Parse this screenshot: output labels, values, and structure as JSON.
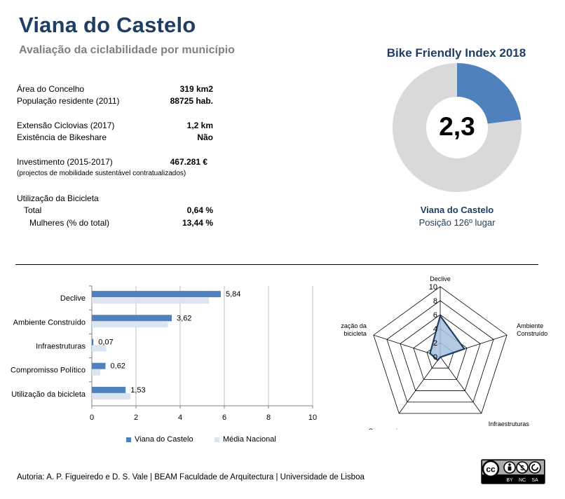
{
  "header": {
    "title": "Viana do Castelo",
    "subtitle": "Avaliação da ciclabilidade por município"
  },
  "facts": [
    {
      "label": "Área do Concelho",
      "value": "319 km2"
    },
    {
      "label": "População residente (2011)",
      "value": "88725 hab."
    },
    {
      "label": "Extensão Ciclovias (2017)",
      "value": "1,2 km"
    },
    {
      "label": "Existência de Bikeshare",
      "value": "Não"
    },
    {
      "label": "Investimento (2015-2017)",
      "value": "467.281 €"
    },
    {
      "label": "(projectos de mobilidade sustentável contratualizados)",
      "value": ""
    },
    {
      "label": "Utilização da Bicicleta",
      "value": ""
    },
    {
      "label": "Total",
      "value": "0,64 %"
    },
    {
      "label": "Mulheres (% do total)",
      "value": "13,44 %"
    }
  ],
  "bike_friendly": {
    "title": "Bike Friendly Index 2018",
    "score": "2,3",
    "municipality": "Viana do Castelo",
    "position": "Posição 126º lugar",
    "fill_fraction": 0.23,
    "colors": {
      "fill": "#4f81bd",
      "track": "#d9d9d9"
    }
  },
  "chart_data": [
    {
      "type": "bar",
      "orientation": "horizontal",
      "categories": [
        "Declive",
        "Ambiente Construído",
        "Infraestruturas",
        "Compromisso Político",
        "Utilização da bicicleta"
      ],
      "series": [
        {
          "name": "Viana do Castelo",
          "values": [
            5.84,
            3.62,
            0.07,
            0.62,
            1.53
          ],
          "labels": [
            "5,84",
            "3,62",
            "0,07",
            "0,62",
            "1,53"
          ],
          "color": "#4f81bd"
        },
        {
          "name": "Média Nacional",
          "values": [
            5.3,
            3.45,
            0.65,
            0.38,
            1.75
          ],
          "color": "#dbe5f1"
        }
      ],
      "xlim": [
        0,
        10
      ],
      "xticks": [
        "0",
        "2",
        "4",
        "6",
        "8",
        "10"
      ],
      "grid": true,
      "legend": "bottom"
    },
    {
      "type": "radar",
      "axes": [
        "Declive",
        "Ambiente Construído",
        "Infraestruturas",
        "Compromisso Político",
        "Utilização da bicicleta"
      ],
      "series": [
        {
          "name": "Viana do Castelo",
          "values": [
            5.84,
            3.62,
            0.07,
            0.62,
            1.53
          ],
          "color": "#1f3e63",
          "fill": "#a7bfdd"
        }
      ],
      "rlim": [
        0,
        10
      ],
      "rticks": [
        "0",
        "2",
        "4",
        "6",
        "8",
        "10"
      ]
    }
  ],
  "footer": {
    "credit": "Autoria: A. P. Figueiredo e D. S. Vale | BEAM Faculdade de Arquitectura | Universidade de Lisboa",
    "license_badge": [
      "cc",
      "BY",
      "NC",
      "SA"
    ]
  }
}
